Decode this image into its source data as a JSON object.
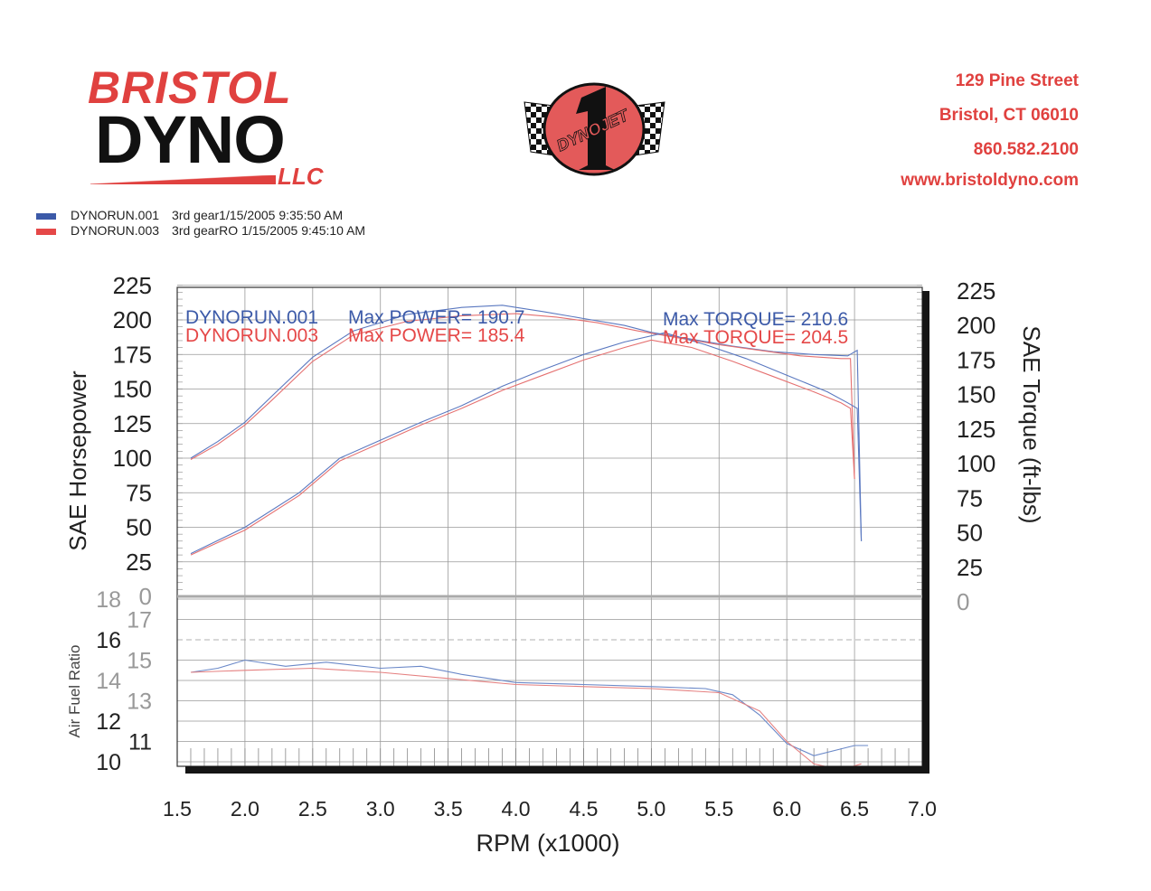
{
  "header": {
    "logo_line1": "BRISTOL",
    "logo_line2": "DYNO",
    "logo_line3": "LLC",
    "center_logo_text": "DYNOJET",
    "address": [
      "129 Pine Street",
      "Bristol, CT  06010",
      "860.582.2100",
      "www.bristoldyno.com"
    ]
  },
  "legend": [
    {
      "run": "DYNORUN.001",
      "desc": "3rd gear1/15/2005 9:35:50 AM",
      "color": "#3c5aa8"
    },
    {
      "run": "DYNORUN.003",
      "desc": "3rd gearRO  1/15/2005 9:45:10 AM",
      "color": "#e54848"
    }
  ],
  "chart_data": {
    "type": "line",
    "xlabel": "RPM (x1000)",
    "xlim": [
      1.5,
      7.0
    ],
    "xticks": [
      "1.5",
      "2.0",
      "2.5",
      "3.0",
      "3.5",
      "4.0",
      "4.5",
      "5.0",
      "5.5",
      "6.0",
      "6.5",
      "7.0"
    ],
    "grid": true,
    "upper": {
      "ylabel_left": "SAE Horsepower",
      "ylabel_right": "SAE Torque (ft-lbs)",
      "ylim": [
        0,
        225
      ],
      "yticks": [
        "0",
        "25",
        "50",
        "75",
        "100",
        "125",
        "150",
        "175",
        "200",
        "225"
      ],
      "annotations": [
        {
          "run": "DYNORUN.001",
          "power": "Max POWER= 190.7",
          "torque": "Max TORQUE= 210.6",
          "color": "#3c5aa8"
        },
        {
          "run": "DYNORUN.003",
          "power": "Max POWER= 185.4",
          "torque": "Max TORQUE= 204.5",
          "color": "#e54848"
        }
      ],
      "series": [
        {
          "name": "DYNORUN.001",
          "kind": "torque",
          "color": "#5a78c0",
          "points": [
            [
              1.6,
              100
            ],
            [
              1.8,
              112
            ],
            [
              2.0,
              126
            ],
            [
              2.2,
              145
            ],
            [
              2.5,
              173
            ],
            [
              2.8,
              192
            ],
            [
              3.2,
              204
            ],
            [
              3.6,
              209
            ],
            [
              3.9,
              210.6
            ],
            [
              4.2,
              206
            ],
            [
              4.5,
              201
            ],
            [
              4.8,
              196
            ],
            [
              5.0,
              191
            ],
            [
              5.3,
              186
            ],
            [
              5.6,
              181
            ],
            [
              5.9,
              177
            ],
            [
              6.2,
              175
            ],
            [
              6.45,
              174
            ],
            [
              6.52,
              178
            ],
            [
              6.55,
              40
            ]
          ]
        },
        {
          "name": "DYNORUN.003",
          "kind": "torque",
          "color": "#e57070",
          "points": [
            [
              1.6,
              99
            ],
            [
              1.8,
              110
            ],
            [
              2.0,
              124
            ],
            [
              2.2,
              142
            ],
            [
              2.5,
              170
            ],
            [
              2.8,
              189
            ],
            [
              3.2,
              199
            ],
            [
              3.6,
              203
            ],
            [
              4.0,
              204.5
            ],
            [
              4.3,
              202
            ],
            [
              4.6,
              198
            ],
            [
              4.9,
              192
            ],
            [
              5.2,
              187
            ],
            [
              5.5,
              182
            ],
            [
              5.8,
              178
            ],
            [
              6.1,
              174
            ],
            [
              6.4,
              172
            ],
            [
              6.47,
              172
            ],
            [
              6.5,
              85
            ]
          ]
        },
        {
          "name": "DYNORUN.001",
          "kind": "power",
          "color": "#5a78c0",
          "points": [
            [
              1.6,
              31
            ],
            [
              2.0,
              50
            ],
            [
              2.4,
              75
            ],
            [
              2.7,
              100
            ],
            [
              3.0,
              113
            ],
            [
              3.3,
              126
            ],
            [
              3.6,
              138
            ],
            [
              3.9,
              152
            ],
            [
              4.2,
              164
            ],
            [
              4.5,
              175
            ],
            [
              4.8,
              184
            ],
            [
              5.1,
              190.7
            ],
            [
              5.4,
              182
            ],
            [
              5.7,
              172
            ],
            [
              6.0,
              160
            ],
            [
              6.3,
              148
            ],
            [
              6.45,
              140
            ],
            [
              6.52,
              136
            ],
            [
              6.55,
              40
            ]
          ]
        },
        {
          "name": "DYNORUN.003",
          "kind": "power",
          "color": "#e57070",
          "points": [
            [
              1.6,
              30
            ],
            [
              2.0,
              48
            ],
            [
              2.4,
              73
            ],
            [
              2.7,
              98
            ],
            [
              3.0,
              111
            ],
            [
              3.3,
              124
            ],
            [
              3.6,
              136
            ],
            [
              3.9,
              149
            ],
            [
              4.2,
              160
            ],
            [
              4.5,
              171
            ],
            [
              4.8,
              180
            ],
            [
              5.0,
              185.4
            ],
            [
              5.3,
              180
            ],
            [
              5.6,
              170
            ],
            [
              5.9,
              159
            ],
            [
              6.2,
              148
            ],
            [
              6.4,
              140
            ],
            [
              6.47,
              136
            ],
            [
              6.5,
              85
            ]
          ]
        }
      ]
    },
    "lower": {
      "ylabel": "Air Fuel Ratio",
      "ylim": [
        10,
        18
      ],
      "yticks": [
        "10",
        "11",
        "12",
        "13",
        "14",
        "15",
        "16",
        "17",
        "18"
      ],
      "series": [
        {
          "name": "DYNORUN.001",
          "kind": "afr",
          "color": "#6a88c8",
          "points": [
            [
              1.6,
              14.4
            ],
            [
              1.8,
              14.6
            ],
            [
              2.0,
              15.0
            ],
            [
              2.3,
              14.7
            ],
            [
              2.6,
              14.9
            ],
            [
              3.0,
              14.6
            ],
            [
              3.3,
              14.7
            ],
            [
              3.6,
              14.3
            ],
            [
              4.0,
              13.9
            ],
            [
              4.5,
              13.8
            ],
            [
              5.0,
              13.7
            ],
            [
              5.4,
              13.6
            ],
            [
              5.6,
              13.3
            ],
            [
              5.8,
              12.3
            ],
            [
              6.0,
              10.9
            ],
            [
              6.2,
              10.3
            ],
            [
              6.5,
              10.8
            ],
            [
              6.6,
              10.8
            ]
          ]
        },
        {
          "name": "DYNORUN.003",
          "kind": "afr",
          "color": "#e58080",
          "points": [
            [
              1.6,
              14.4
            ],
            [
              2.0,
              14.5
            ],
            [
              2.5,
              14.6
            ],
            [
              3.0,
              14.4
            ],
            [
              3.5,
              14.1
            ],
            [
              4.0,
              13.8
            ],
            [
              4.5,
              13.7
            ],
            [
              5.0,
              13.6
            ],
            [
              5.5,
              13.4
            ],
            [
              5.8,
              12.5
            ],
            [
              6.0,
              11.0
            ],
            [
              6.2,
              9.9
            ],
            [
              6.4,
              9.6
            ],
            [
              6.55,
              9.9
            ]
          ]
        }
      ]
    }
  }
}
